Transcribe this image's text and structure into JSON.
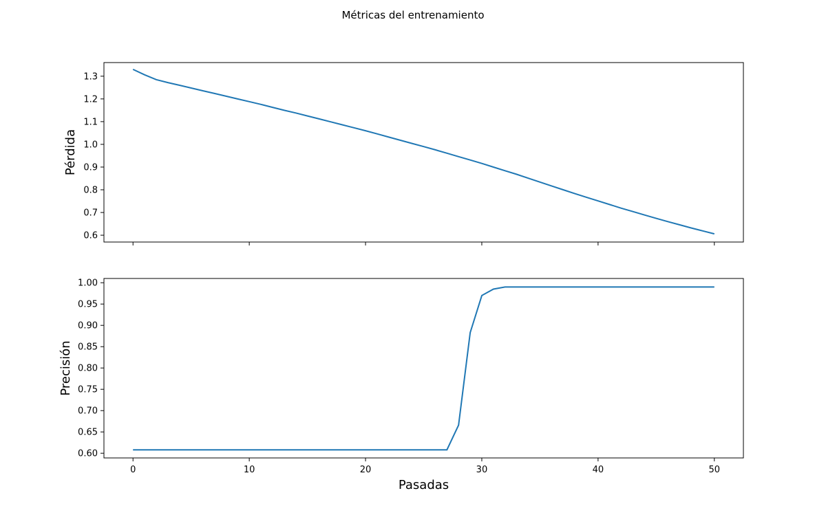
{
  "title": "Métricas del entrenamiento",
  "chart_data": [
    {
      "type": "line",
      "title": "",
      "xlabel": "",
      "ylabel": "Pérdida",
      "xlim": [
        -2.5,
        52.5
      ],
      "ylim": [
        0.57,
        1.36
      ],
      "xticks": [
        0,
        10,
        20,
        30,
        40,
        50
      ],
      "show_xtick_labels": false,
      "yticks": [
        0.6,
        0.7,
        0.8,
        0.9,
        1.0,
        1.1,
        1.2,
        1.3
      ],
      "ytick_labels": [
        "0.6",
        "0.7",
        "0.8",
        "0.9",
        "1.0",
        "1.1",
        "1.2",
        "1.3"
      ],
      "grid": false,
      "color": "#1f77b4",
      "x": [
        0,
        1,
        2,
        3,
        4,
        5,
        6,
        7,
        8,
        9,
        10,
        11,
        12,
        13,
        14,
        15,
        16,
        17,
        18,
        19,
        20,
        21,
        22,
        23,
        24,
        25,
        26,
        27,
        28,
        29,
        30,
        31,
        32,
        33,
        34,
        35,
        36,
        37,
        38,
        39,
        40,
        41,
        42,
        43,
        44,
        45,
        46,
        47,
        48,
        49,
        50
      ],
      "y": [
        1.33,
        1.306,
        1.285,
        1.272,
        1.26,
        1.248,
        1.236,
        1.224,
        1.212,
        1.2,
        1.188,
        1.176,
        1.163,
        1.15,
        1.138,
        1.125,
        1.112,
        1.099,
        1.086,
        1.073,
        1.06,
        1.046,
        1.032,
        1.018,
        1.004,
        0.99,
        0.976,
        0.961,
        0.946,
        0.931,
        0.916,
        0.9,
        0.884,
        0.868,
        0.851,
        0.834,
        0.817,
        0.8,
        0.783,
        0.767,
        0.751,
        0.735,
        0.719,
        0.704,
        0.689,
        0.674,
        0.66,
        0.646,
        0.632,
        0.619,
        0.606
      ]
    },
    {
      "type": "line",
      "title": "",
      "xlabel": "Pasadas",
      "ylabel": "Precisión",
      "xlim": [
        -2.5,
        52.5
      ],
      "ylim": [
        0.589,
        1.01
      ],
      "xticks": [
        0,
        10,
        20,
        30,
        40,
        50
      ],
      "xtick_labels": [
        "0",
        "10",
        "20",
        "30",
        "40",
        "50"
      ],
      "yticks": [
        0.6,
        0.65,
        0.7,
        0.75,
        0.8,
        0.85,
        0.9,
        0.95,
        1.0
      ],
      "ytick_labels": [
        "0.60",
        "0.65",
        "0.70",
        "0.75",
        "0.80",
        "0.85",
        "0.90",
        "0.95",
        "1.00"
      ],
      "grid": false,
      "color": "#1f77b4",
      "x": [
        0,
        1,
        2,
        3,
        4,
        5,
        6,
        7,
        8,
        9,
        10,
        11,
        12,
        13,
        14,
        15,
        16,
        17,
        18,
        19,
        20,
        21,
        22,
        23,
        24,
        25,
        26,
        27,
        28,
        29,
        30,
        31,
        32,
        33,
        34,
        35,
        36,
        37,
        38,
        39,
        40,
        41,
        42,
        43,
        44,
        45,
        46,
        47,
        48,
        49,
        50
      ],
      "y": [
        0.608,
        0.608,
        0.608,
        0.608,
        0.608,
        0.608,
        0.608,
        0.608,
        0.608,
        0.608,
        0.608,
        0.608,
        0.608,
        0.608,
        0.608,
        0.608,
        0.608,
        0.608,
        0.608,
        0.608,
        0.608,
        0.608,
        0.608,
        0.608,
        0.608,
        0.608,
        0.608,
        0.608,
        0.666,
        0.883,
        0.97,
        0.985,
        0.99,
        0.99,
        0.99,
        0.99,
        0.99,
        0.99,
        0.99,
        0.99,
        0.99,
        0.99,
        0.99,
        0.99,
        0.99,
        0.99,
        0.99,
        0.99,
        0.99,
        0.99,
        0.99
      ]
    }
  ]
}
